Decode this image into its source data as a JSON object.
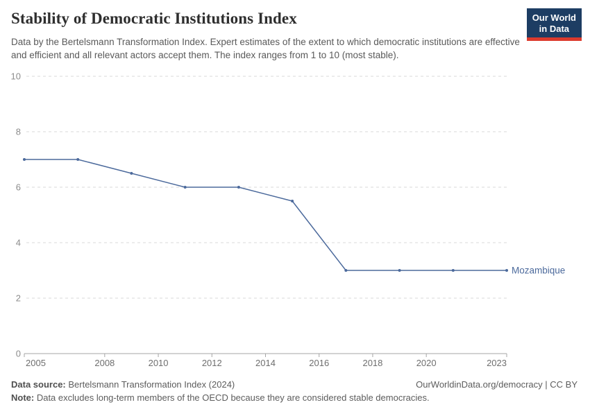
{
  "header": {
    "title": "Stability of Democratic Institutions Index",
    "subtitle": "Data by the Bertelsmann Transformation Index. Expert estimates of the extent to which democratic institutions are effective and efficient and all relevant actors accept them. The index ranges from 1 to 10 (most stable).",
    "logo": {
      "line1": "Our World",
      "line2": "in Data",
      "bg_color": "#1d3d63",
      "accent_color": "#dc3a2d"
    }
  },
  "chart_data": {
    "type": "line",
    "title": "Stability of Democratic Institutions Index",
    "x": [
      2005,
      2007,
      2009,
      2011,
      2013,
      2015,
      2017,
      2019,
      2021,
      2023
    ],
    "series": [
      {
        "name": "Mozambique",
        "color": "#4c6a9c",
        "values": [
          7,
          7,
          6.5,
          6,
          6,
          5.5,
          3,
          3,
          3,
          3
        ]
      }
    ],
    "xlabel": "",
    "ylabel": "",
    "xlim": [
      2005,
      2023
    ],
    "ylim": [
      0,
      10
    ],
    "x_ticks": [
      2005,
      2008,
      2010,
      2012,
      2014,
      2016,
      2018,
      2020,
      2023
    ],
    "y_ticks": [
      0,
      2,
      4,
      6,
      8,
      10
    ],
    "grid": "horizontal-dashed",
    "legend_position": "end-of-line-label"
  },
  "footer": {
    "source_label": "Data source:",
    "source_text": " Bertelsmann Transformation Index (2024)",
    "rights": "OurWorldinData.org/democracy | CC BY",
    "note_label": "Note:",
    "note_text": " Data excludes long-term members of the OECD because they are considered stable democracies."
  }
}
